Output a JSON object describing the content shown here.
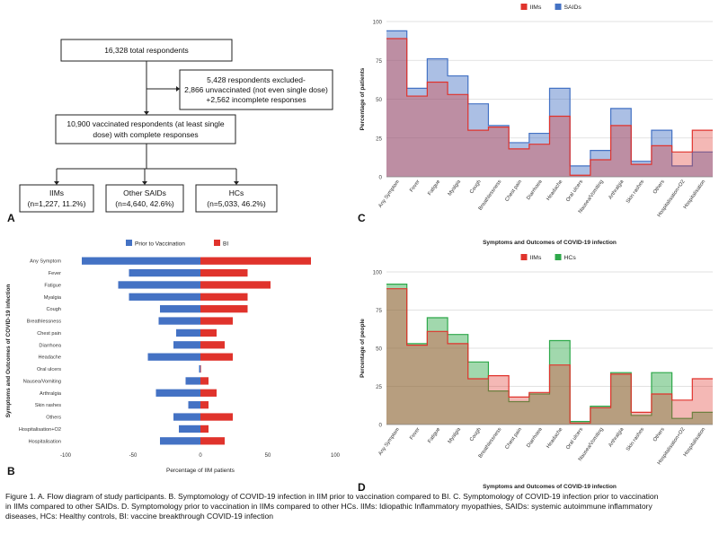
{
  "panel_labels": {
    "a": "A",
    "b": "B",
    "c": "C",
    "d": "D"
  },
  "flow": {
    "total": "16,328 total respondents",
    "excluded": [
      "5,428 respondents excluded-",
      "2,866 unvaccinated (not even single dose)",
      "+2,562 incomplete responses"
    ],
    "vaccinated": [
      "10,900 vaccinated respondents (at least single",
      "dose) with complete responses"
    ],
    "iims": [
      "IIMs",
      "(n=1,227, 11.2%)"
    ],
    "saids": [
      "Other SAIDs",
      "(n=4,640, 42.6%)"
    ],
    "hcs": [
      "HCs",
      "(n=5,033, 46.2%)"
    ]
  },
  "chart_data": [
    {
      "id": "B",
      "type": "bar",
      "orientation": "horizontal",
      "categories": [
        "Any Symptom",
        "Fever",
        "Fatigue",
        "Myalgia",
        "Cough",
        "Breathlessness",
        "Chest pain",
        "Diarrhoea",
        "Headache",
        "Oral ulcers",
        "Nausea/Vomiting",
        "Arthralgia",
        "Skin rashes",
        "Others",
        "Hospitalisation+O2",
        "Hospitalisation"
      ],
      "series": [
        {
          "name": "Prior to Vaccination",
          "color": "#4472c4",
          "values": [
            -88,
            -53,
            -61,
            -53,
            -30,
            -31,
            -18,
            -20,
            -39,
            -1,
            -11,
            -33,
            -9,
            -20,
            -16,
            -30
          ]
        },
        {
          "name": "BI",
          "color": "#e0332c",
          "values": [
            82,
            35,
            52,
            35,
            35,
            24,
            12,
            18,
            24,
            0,
            6,
            12,
            6,
            24,
            6,
            18
          ]
        }
      ],
      "xlim": [
        -100,
        100
      ],
      "xticks": [
        -100,
        -50,
        0,
        50,
        100
      ],
      "xlabel": "Percentage of IIM patients",
      "ylabel": "Symptoms and Outcomes of COVID-19 infection",
      "legend": "top-center",
      "grid": false
    },
    {
      "id": "C",
      "type": "area",
      "step": true,
      "categories": [
        "Any Symptom",
        "Fever",
        "Fatigue",
        "Myalgia",
        "Cough",
        "Breathlessness",
        "Chest pain",
        "Diarrhoea",
        "Headache",
        "Oral ulcers",
        "Nausea/Vomiting",
        "Arthralgia",
        "Skin rashes",
        "Others",
        "Hospitalisation+O2",
        "Hospitalisation"
      ],
      "series": [
        {
          "name": "IIMs",
          "color": "#e0332c",
          "values": [
            89,
            52,
            61,
            53,
            30,
            32,
            18,
            21,
            39,
            1,
            11,
            33,
            8,
            20,
            16,
            30
          ]
        },
        {
          "name": "SAIDs",
          "color": "#4472c4",
          "values": [
            94,
            57,
            76,
            65,
            47,
            33,
            22,
            28,
            57,
            7,
            17,
            44,
            10,
            30,
            7,
            16
          ]
        }
      ],
      "ylim": [
        0,
        100
      ],
      "yticks": [
        0,
        25,
        50,
        75,
        100
      ],
      "xlabel": "Symptoms and Outcomes of COVID-19 infection",
      "ylabel": "Percentage of patients",
      "legend": "top-center",
      "grid": true
    },
    {
      "id": "D",
      "type": "area",
      "step": true,
      "categories": [
        "Any Symptom",
        "Fever",
        "Fatigue",
        "Myalgia",
        "Cough",
        "Breathlessness",
        "Chest pain",
        "Diarrhoea",
        "Headache",
        "Oral ulcers",
        "Nausea/Vomiting",
        "Arthralgia",
        "Skin rashes",
        "Others",
        "Hospitalisation+O2",
        "Hospitalisation"
      ],
      "series": [
        {
          "name": "IIMs",
          "color": "#e0332c",
          "values": [
            89,
            52,
            61,
            53,
            30,
            32,
            18,
            21,
            39,
            1,
            11,
            33,
            8,
            20,
            16,
            30
          ]
        },
        {
          "name": "HCs",
          "color": "#2ea84a",
          "values": [
            92,
            53,
            70,
            59,
            41,
            22,
            15,
            20,
            55,
            2,
            12,
            34,
            6,
            34,
            4,
            8
          ]
        }
      ],
      "ylim": [
        0,
        100
      ],
      "yticks": [
        0,
        25,
        50,
        75,
        100
      ],
      "xlabel": "Symptoms and Outcomes of COVID-19 infection",
      "ylabel": "Percentage of people",
      "legend": "top-center",
      "grid": true
    }
  ],
  "caption": [
    "Figure 1. A. Flow diagram of study participants. B. Symptomology of COVID-19 infection in IIM prior to vaccination compared to BI. C. Symptomology of COVID-19 infection prior to vaccination",
    "in IIMs compared to other SAIDs. D. Symptomology prior to vaccination in IIMs compared to other HCs. IIMs: Idiopathic Inflammatory myopathies, SAIDs: systemic autoimmune inflammatory",
    "diseases, HCs: Healthy controls, BI: vaccine breakthrough COVID-19 infection"
  ]
}
